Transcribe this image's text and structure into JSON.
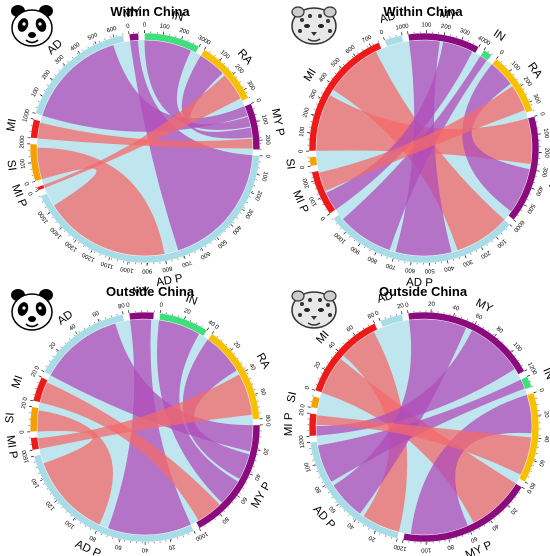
{
  "figure": {
    "panels": [
      {
        "id": "panda-within",
        "title": "Within China",
        "animal_icon": "panda-icon"
      },
      {
        "id": "leopard-within",
        "title": "Within China",
        "animal_icon": "snow-leopard-icon"
      },
      {
        "id": "panda-outside",
        "title": "Outside China",
        "animal_icon": "panda-icon"
      },
      {
        "id": "leopard-outside",
        "title": "Outside China",
        "animal_icon": "snow-leopard-icon"
      }
    ]
  },
  "colors": {
    "AD": "#a8dde8",
    "MY": "#8b0a7e",
    "IN": "#3fe07c",
    "RA": "#f7c100",
    "SI": "#f4a000",
    "MI": "#ee1a1a",
    "MI P": "#ee1a1a",
    "MY P": "#8b0a7e",
    "AD P": "#a8dde8",
    "chord_red": "#f46a6a",
    "chord_purple": "#b04cb8",
    "fill_bg": "#bfe6ee"
  },
  "chart_data": [
    {
      "type": "chord",
      "title": "Within China",
      "segments": [
        {
          "name": "MY",
          "max": 50,
          "ticks": [
            "0"
          ]
        },
        {
          "name": "IN",
          "max": 300,
          "ticks": [
            "0",
            "100",
            "200",
            "300"
          ]
        },
        {
          "name": "RA",
          "max": 350,
          "ticks": [
            "0",
            "100",
            "200",
            "300"
          ]
        },
        {
          "name": "MY P",
          "max": 250,
          "ticks": [
            "0",
            "100",
            "200"
          ]
        },
        {
          "name": "AD P",
          "max": 1600,
          "ticks": [
            "0",
            "100",
            "200",
            "300",
            "400",
            "500",
            "600",
            "700",
            "800",
            "900",
            "1000",
            "1100",
            "1200",
            "1300",
            "1400",
            "1500"
          ]
        },
        {
          "name": "MI P",
          "max": 20,
          "ticks": [
            "0"
          ]
        },
        {
          "name": "SI",
          "max": 200,
          "ticks": [
            "0",
            "100",
            "200"
          ]
        },
        {
          "name": "MI",
          "max": 100,
          "ticks": [
            "0",
            "100"
          ]
        },
        {
          "name": "AD",
          "max": 650,
          "ticks": [
            "0",
            "100",
            "200",
            "300",
            "400",
            "500",
            "600"
          ]
        }
      ],
      "flows": [
        {
          "from": "AD",
          "to": "MY P",
          "color": "purple"
        },
        {
          "from": "MY",
          "to": "AD P",
          "color": "purple"
        },
        {
          "from": "IN",
          "to": "MY P",
          "color": "purple"
        },
        {
          "from": "RA",
          "to": "MY P",
          "color": "purple"
        },
        {
          "from": "MI",
          "to": "MY P",
          "color": "red"
        },
        {
          "from": "SI",
          "to": "AD P",
          "color": "red"
        },
        {
          "from": "MI P",
          "to": "RA",
          "color": "red"
        }
      ]
    },
    {
      "type": "chord",
      "title": "Within China",
      "segments": [
        {
          "name": "MY",
          "max": 400,
          "ticks": [
            "0",
            "100",
            "200",
            "300",
            "400"
          ]
        },
        {
          "name": "IN",
          "max": 50,
          "ticks": [
            "0"
          ]
        },
        {
          "name": "RA",
          "max": 350,
          "ticks": [
            "0",
            "100",
            "200",
            "300"
          ]
        },
        {
          "name": "MY P",
          "max": 600,
          "ticks": [
            "0",
            "100",
            "200",
            "300",
            "400",
            "500",
            "600"
          ]
        },
        {
          "name": "AD P",
          "max": 1100,
          "ticks": [
            "0",
            "100",
            "200",
            "300",
            "400",
            "500",
            "600",
            "700",
            "800",
            "900",
            "1000"
          ]
        },
        {
          "name": "MI P",
          "max": 250,
          "ticks": [
            "0",
            "100",
            "200"
          ]
        },
        {
          "name": "SI",
          "max": 50,
          "ticks": [
            "0"
          ]
        },
        {
          "name": "MI",
          "max": 750,
          "ticks": [
            "0",
            "100",
            "200",
            "300",
            "400",
            "500",
            "600",
            "700"
          ]
        },
        {
          "name": "AD",
          "max": 100,
          "ticks": [
            "0",
            "100"
          ]
        }
      ],
      "flows": [
        {
          "from": "MI",
          "to": "MY P",
          "color": "red"
        },
        {
          "from": "MI",
          "to": "AD P",
          "color": "red"
        },
        {
          "from": "MY",
          "to": "AD P",
          "color": "purple"
        },
        {
          "from": "MY",
          "to": "MI P",
          "color": "purple"
        },
        {
          "from": "RA",
          "to": "MY P",
          "color": "purple"
        },
        {
          "from": "IN",
          "to": "AD P",
          "color": "purple"
        },
        {
          "from": "MI P",
          "to": "RA",
          "color": "red"
        }
      ]
    },
    {
      "type": "chord",
      "title": "Outside China",
      "segments": [
        {
          "name": "MY",
          "max": 20,
          "ticks": [
            "0"
          ]
        },
        {
          "name": "IN",
          "max": 40,
          "ticks": [
            "0",
            "20",
            "40"
          ]
        },
        {
          "name": "RA",
          "max": 80,
          "ticks": [
            "0",
            "20",
            "40",
            "60",
            "80"
          ]
        },
        {
          "name": "MY P",
          "max": 100,
          "ticks": [
            "0",
            "20",
            "40",
            "60",
            "80",
            "100"
          ]
        },
        {
          "name": "AD P",
          "max": 160,
          "ticks": [
            "0",
            "20",
            "40",
            "60",
            "80",
            "100",
            "120",
            "140",
            "160"
          ]
        },
        {
          "name": "MI P",
          "max": 10,
          "ticks": [
            "0"
          ]
        },
        {
          "name": "SI",
          "max": 20,
          "ticks": [
            "0",
            "20"
          ]
        },
        {
          "name": "MI",
          "max": 20,
          "ticks": [
            "0",
            "20"
          ]
        },
        {
          "name": "AD",
          "max": 80,
          "ticks": [
            "0",
            "20",
            "40",
            "60",
            "80"
          ]
        }
      ],
      "flows": [
        {
          "from": "AD",
          "to": "MY P",
          "color": "purple"
        },
        {
          "from": "RA",
          "to": "MY P",
          "color": "purple"
        },
        {
          "from": "IN",
          "to": "MY P",
          "color": "purple"
        },
        {
          "from": "MY",
          "to": "AD P",
          "color": "purple"
        },
        {
          "from": "MI",
          "to": "MY P",
          "color": "red"
        },
        {
          "from": "SI",
          "to": "AD P",
          "color": "red"
        },
        {
          "from": "MI P",
          "to": "RA",
          "color": "red"
        }
      ]
    },
    {
      "type": "chord",
      "title": "Outside China",
      "segments": [
        {
          "name": "MY",
          "max": 120,
          "ticks": [
            "0",
            "20",
            "40",
            "60",
            "80",
            "100",
            "120"
          ]
        },
        {
          "name": "IN",
          "max": 10,
          "ticks": [
            "0"
          ]
        },
        {
          "name": "RA",
          "max": 80,
          "ticks": [
            "0",
            "20",
            "40",
            "60",
            "80"
          ]
        },
        {
          "name": "MY P",
          "max": 120,
          "ticks": [
            "0",
            "20",
            "40",
            "60",
            "80",
            "100",
            "120"
          ]
        },
        {
          "name": "AD P",
          "max": 120,
          "ticks": [
            "0",
            "20",
            "40",
            "60",
            "80",
            "100",
            "120"
          ]
        },
        {
          "name": "MI P",
          "max": 20,
          "ticks": [
            "0",
            "20"
          ]
        },
        {
          "name": "SI",
          "max": 10,
          "ticks": [
            "0"
          ]
        },
        {
          "name": "MI",
          "max": 80,
          "ticks": [
            "0",
            "20",
            "40",
            "60",
            "80"
          ]
        },
        {
          "name": "AD",
          "max": 20,
          "ticks": [
            "0",
            "20"
          ]
        }
      ],
      "flows": [
        {
          "from": "MI",
          "to": "MY P",
          "color": "red"
        },
        {
          "from": "MI",
          "to": "AD P",
          "color": "red"
        },
        {
          "from": "MY",
          "to": "AD P",
          "color": "purple"
        },
        {
          "from": "MY",
          "to": "MI P",
          "color": "purple"
        },
        {
          "from": "RA",
          "to": "MY P",
          "color": "purple"
        },
        {
          "from": "IN",
          "to": "AD P",
          "color": "purple"
        },
        {
          "from": "MI P",
          "to": "RA",
          "color": "red"
        }
      ]
    }
  ]
}
